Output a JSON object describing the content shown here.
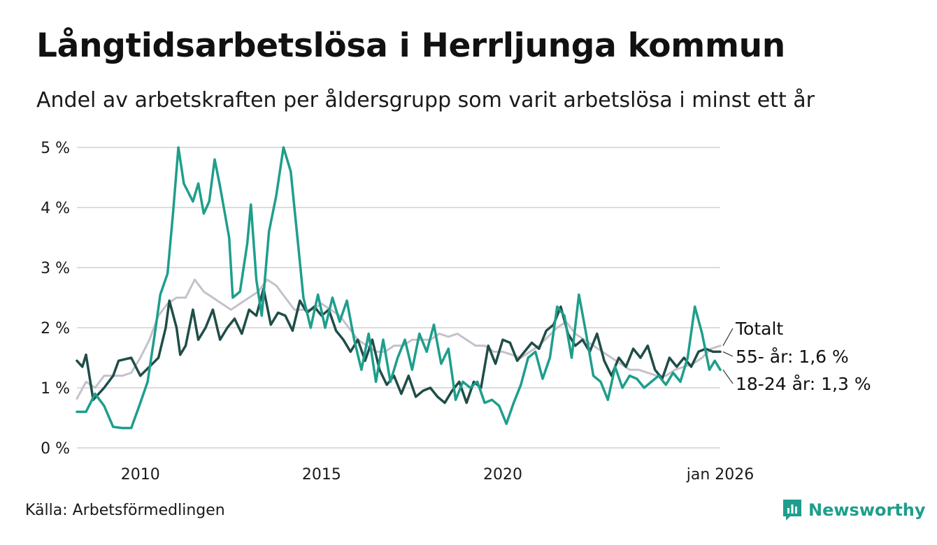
{
  "header": {
    "title": "Långtidsarbetslösa i Herrljunga kommun",
    "subtitle": "Andel av arbetskraften per åldersgrupp som varit arbetslösa i minst ett år"
  },
  "footer": {
    "source": "Källa: Arbetsförmedlingen",
    "brand": "Newsworthy"
  },
  "colors": {
    "total": "#c4c1cb",
    "age55": "#1f4d48",
    "age18_24": "#1e9e8c",
    "grid": "#dcdcdc",
    "brand": "#1e9e8c"
  },
  "chart_data": {
    "type": "line",
    "title": "Långtidsarbetslösa i Herrljunga kommun",
    "xlabel": "",
    "ylabel": "",
    "xlim": [
      2008.25,
      2026.0
    ],
    "ylim": [
      0,
      5
    ],
    "y_ticks": [
      0,
      1,
      2,
      3,
      4,
      5
    ],
    "y_tick_labels": [
      "0 %",
      "1 %",
      "2 %",
      "3 %",
      "4 %",
      "5 %"
    ],
    "x_ticks": [
      2010,
      2015,
      2020,
      2026.0
    ],
    "x_tick_labels": [
      "2010",
      "2015",
      "2020",
      "jan 2026"
    ],
    "grid": true,
    "series": [
      {
        "key": "total",
        "name": "Totalt",
        "label": "Totalt",
        "points": [
          [
            2008.25,
            0.82
          ],
          [
            2008.5,
            1.1
          ],
          [
            2008.75,
            1.0
          ],
          [
            2009.0,
            1.2
          ],
          [
            2009.25,
            1.2
          ],
          [
            2009.5,
            1.2
          ],
          [
            2009.75,
            1.25
          ],
          [
            2010.0,
            1.5
          ],
          [
            2010.25,
            1.8
          ],
          [
            2010.5,
            2.2
          ],
          [
            2010.75,
            2.4
          ],
          [
            2011.0,
            2.5
          ],
          [
            2011.25,
            2.5
          ],
          [
            2011.5,
            2.8
          ],
          [
            2011.75,
            2.6
          ],
          [
            2012.0,
            2.5
          ],
          [
            2012.25,
            2.4
          ],
          [
            2012.5,
            2.3
          ],
          [
            2012.75,
            2.4
          ],
          [
            2013.0,
            2.5
          ],
          [
            2013.25,
            2.6
          ],
          [
            2013.5,
            2.8
          ],
          [
            2013.75,
            2.7
          ],
          [
            2014.0,
            2.5
          ],
          [
            2014.25,
            2.3
          ],
          [
            2014.5,
            2.3
          ],
          [
            2014.75,
            2.3
          ],
          [
            2015.0,
            2.4
          ],
          [
            2015.25,
            2.3
          ],
          [
            2015.5,
            2.2
          ],
          [
            2015.75,
            2.0
          ],
          [
            2016.0,
            1.8
          ],
          [
            2016.25,
            1.7
          ],
          [
            2016.5,
            1.6
          ],
          [
            2016.75,
            1.6
          ],
          [
            2017.0,
            1.7
          ],
          [
            2017.25,
            1.7
          ],
          [
            2017.5,
            1.8
          ],
          [
            2017.75,
            1.8
          ],
          [
            2018.0,
            1.8
          ],
          [
            2018.25,
            1.9
          ],
          [
            2018.5,
            1.85
          ],
          [
            2018.75,
            1.9
          ],
          [
            2019.0,
            1.8
          ],
          [
            2019.25,
            1.7
          ],
          [
            2019.5,
            1.7
          ],
          [
            2019.75,
            1.6
          ],
          [
            2020.0,
            1.6
          ],
          [
            2020.25,
            1.55
          ],
          [
            2020.5,
            1.5
          ],
          [
            2020.75,
            1.6
          ],
          [
            2021.0,
            1.7
          ],
          [
            2021.25,
            1.85
          ],
          [
            2021.5,
            2.0
          ],
          [
            2021.75,
            2.1
          ],
          [
            2022.0,
            1.9
          ],
          [
            2022.25,
            1.8
          ],
          [
            2022.5,
            1.7
          ],
          [
            2022.75,
            1.6
          ],
          [
            2023.0,
            1.5
          ],
          [
            2023.25,
            1.4
          ],
          [
            2023.5,
            1.3
          ],
          [
            2023.75,
            1.3
          ],
          [
            2024.0,
            1.25
          ],
          [
            2024.25,
            1.2
          ],
          [
            2024.5,
            1.2
          ],
          [
            2024.75,
            1.3
          ],
          [
            2025.0,
            1.35
          ],
          [
            2025.25,
            1.4
          ],
          [
            2025.5,
            1.5
          ],
          [
            2025.75,
            1.65
          ],
          [
            2026.0,
            1.7
          ]
        ]
      },
      {
        "key": "age55",
        "name": "55- år",
        "label": "55- år: 1,6 %",
        "points": [
          [
            2008.25,
            1.45
          ],
          [
            2008.4,
            1.35
          ],
          [
            2008.5,
            1.55
          ],
          [
            2008.7,
            0.8
          ],
          [
            2009.0,
            1.0
          ],
          [
            2009.25,
            1.2
          ],
          [
            2009.4,
            1.45
          ],
          [
            2009.75,
            1.5
          ],
          [
            2010.0,
            1.2
          ],
          [
            2010.25,
            1.35
          ],
          [
            2010.5,
            1.5
          ],
          [
            2010.7,
            2.0
          ],
          [
            2010.8,
            2.45
          ],
          [
            2011.0,
            2.0
          ],
          [
            2011.1,
            1.55
          ],
          [
            2011.25,
            1.7
          ],
          [
            2011.45,
            2.3
          ],
          [
            2011.6,
            1.8
          ],
          [
            2011.8,
            2.0
          ],
          [
            2012.0,
            2.3
          ],
          [
            2012.2,
            1.8
          ],
          [
            2012.4,
            2.0
          ],
          [
            2012.6,
            2.15
          ],
          [
            2012.8,
            1.9
          ],
          [
            2013.0,
            2.3
          ],
          [
            2013.2,
            2.2
          ],
          [
            2013.4,
            2.65
          ],
          [
            2013.6,
            2.05
          ],
          [
            2013.8,
            2.25
          ],
          [
            2014.0,
            2.2
          ],
          [
            2014.2,
            1.95
          ],
          [
            2014.4,
            2.45
          ],
          [
            2014.6,
            2.25
          ],
          [
            2014.8,
            2.35
          ],
          [
            2015.0,
            2.2
          ],
          [
            2015.2,
            2.3
          ],
          [
            2015.4,
            1.95
          ],
          [
            2015.6,
            1.8
          ],
          [
            2015.8,
            1.6
          ],
          [
            2016.0,
            1.8
          ],
          [
            2016.2,
            1.45
          ],
          [
            2016.4,
            1.8
          ],
          [
            2016.6,
            1.3
          ],
          [
            2016.8,
            1.05
          ],
          [
            2017.0,
            1.2
          ],
          [
            2017.2,
            0.9
          ],
          [
            2017.4,
            1.2
          ],
          [
            2017.6,
            0.85
          ],
          [
            2017.8,
            0.95
          ],
          [
            2018.0,
            1.0
          ],
          [
            2018.2,
            0.85
          ],
          [
            2018.4,
            0.75
          ],
          [
            2018.6,
            0.95
          ],
          [
            2018.8,
            1.1
          ],
          [
            2019.0,
            0.75
          ],
          [
            2019.2,
            1.1
          ],
          [
            2019.4,
            1.0
          ],
          [
            2019.6,
            1.7
          ],
          [
            2019.8,
            1.4
          ],
          [
            2020.0,
            1.8
          ],
          [
            2020.2,
            1.75
          ],
          [
            2020.4,
            1.45
          ],
          [
            2020.6,
            1.6
          ],
          [
            2020.8,
            1.75
          ],
          [
            2021.0,
            1.65
          ],
          [
            2021.2,
            1.95
          ],
          [
            2021.4,
            2.05
          ],
          [
            2021.6,
            2.35
          ],
          [
            2021.8,
            1.9
          ],
          [
            2022.0,
            1.7
          ],
          [
            2022.2,
            1.8
          ],
          [
            2022.4,
            1.6
          ],
          [
            2022.6,
            1.9
          ],
          [
            2022.8,
            1.45
          ],
          [
            2023.0,
            1.2
          ],
          [
            2023.2,
            1.5
          ],
          [
            2023.4,
            1.35
          ],
          [
            2023.6,
            1.65
          ],
          [
            2023.8,
            1.5
          ],
          [
            2024.0,
            1.7
          ],
          [
            2024.2,
            1.3
          ],
          [
            2024.4,
            1.15
          ],
          [
            2024.6,
            1.5
          ],
          [
            2024.8,
            1.35
          ],
          [
            2025.0,
            1.5
          ],
          [
            2025.2,
            1.35
          ],
          [
            2025.4,
            1.6
          ],
          [
            2025.6,
            1.65
          ],
          [
            2025.8,
            1.6
          ],
          [
            2026.0,
            1.6
          ]
        ]
      },
      {
        "key": "age18_24",
        "name": "18-24 år",
        "label": "18-24 år: 1,3 %",
        "points": [
          [
            2008.25,
            0.6
          ],
          [
            2008.5,
            0.6
          ],
          [
            2008.75,
            0.9
          ],
          [
            2009.0,
            0.7
          ],
          [
            2009.25,
            0.35
          ],
          [
            2009.5,
            0.33
          ],
          [
            2009.75,
            0.33
          ],
          [
            2010.0,
            0.75
          ],
          [
            2010.2,
            1.1
          ],
          [
            2010.4,
            1.9
          ],
          [
            2010.55,
            2.55
          ],
          [
            2010.75,
            2.9
          ],
          [
            2010.9,
            3.9
          ],
          [
            2011.05,
            5.0
          ],
          [
            2011.2,
            4.4
          ],
          [
            2011.45,
            4.1
          ],
          [
            2011.6,
            4.4
          ],
          [
            2011.75,
            3.9
          ],
          [
            2011.9,
            4.1
          ],
          [
            2012.05,
            4.8
          ],
          [
            2012.2,
            4.35
          ],
          [
            2012.45,
            3.5
          ],
          [
            2012.55,
            2.5
          ],
          [
            2012.75,
            2.6
          ],
          [
            2012.95,
            3.4
          ],
          [
            2013.05,
            4.05
          ],
          [
            2013.2,
            2.8
          ],
          [
            2013.35,
            2.2
          ],
          [
            2013.55,
            3.6
          ],
          [
            2013.75,
            4.2
          ],
          [
            2013.95,
            5.0
          ],
          [
            2014.15,
            4.6
          ],
          [
            2014.35,
            3.4
          ],
          [
            2014.5,
            2.5
          ],
          [
            2014.7,
            2.0
          ],
          [
            2014.9,
            2.55
          ],
          [
            2015.1,
            2.0
          ],
          [
            2015.3,
            2.5
          ],
          [
            2015.5,
            2.1
          ],
          [
            2015.7,
            2.45
          ],
          [
            2015.9,
            1.8
          ],
          [
            2016.1,
            1.3
          ],
          [
            2016.3,
            1.9
          ],
          [
            2016.5,
            1.1
          ],
          [
            2016.7,
            1.8
          ],
          [
            2016.9,
            1.1
          ],
          [
            2017.1,
            1.5
          ],
          [
            2017.3,
            1.8
          ],
          [
            2017.5,
            1.3
          ],
          [
            2017.7,
            1.9
          ],
          [
            2017.9,
            1.6
          ],
          [
            2018.1,
            2.05
          ],
          [
            2018.3,
            1.4
          ],
          [
            2018.5,
            1.65
          ],
          [
            2018.7,
            0.8
          ],
          [
            2018.9,
            1.1
          ],
          [
            2019.1,
            1.0
          ],
          [
            2019.3,
            1.1
          ],
          [
            2019.5,
            0.75
          ],
          [
            2019.7,
            0.8
          ],
          [
            2019.9,
            0.7
          ],
          [
            2020.1,
            0.4
          ],
          [
            2020.3,
            0.75
          ],
          [
            2020.5,
            1.05
          ],
          [
            2020.7,
            1.5
          ],
          [
            2020.9,
            1.6
          ],
          [
            2021.1,
            1.15
          ],
          [
            2021.3,
            1.5
          ],
          [
            2021.5,
            2.35
          ],
          [
            2021.7,
            2.2
          ],
          [
            2021.9,
            1.5
          ],
          [
            2022.1,
            2.55
          ],
          [
            2022.3,
            1.9
          ],
          [
            2022.5,
            1.2
          ],
          [
            2022.7,
            1.1
          ],
          [
            2022.9,
            0.8
          ],
          [
            2023.1,
            1.35
          ],
          [
            2023.3,
            1.0
          ],
          [
            2023.5,
            1.2
          ],
          [
            2023.7,
            1.15
          ],
          [
            2023.9,
            1.0
          ],
          [
            2024.1,
            1.1
          ],
          [
            2024.3,
            1.2
          ],
          [
            2024.5,
            1.05
          ],
          [
            2024.7,
            1.25
          ],
          [
            2024.9,
            1.1
          ],
          [
            2025.1,
            1.5
          ],
          [
            2025.3,
            2.35
          ],
          [
            2025.5,
            1.9
          ],
          [
            2025.7,
            1.3
          ],
          [
            2025.85,
            1.45
          ],
          [
            2026.0,
            1.3
          ]
        ]
      }
    ]
  }
}
